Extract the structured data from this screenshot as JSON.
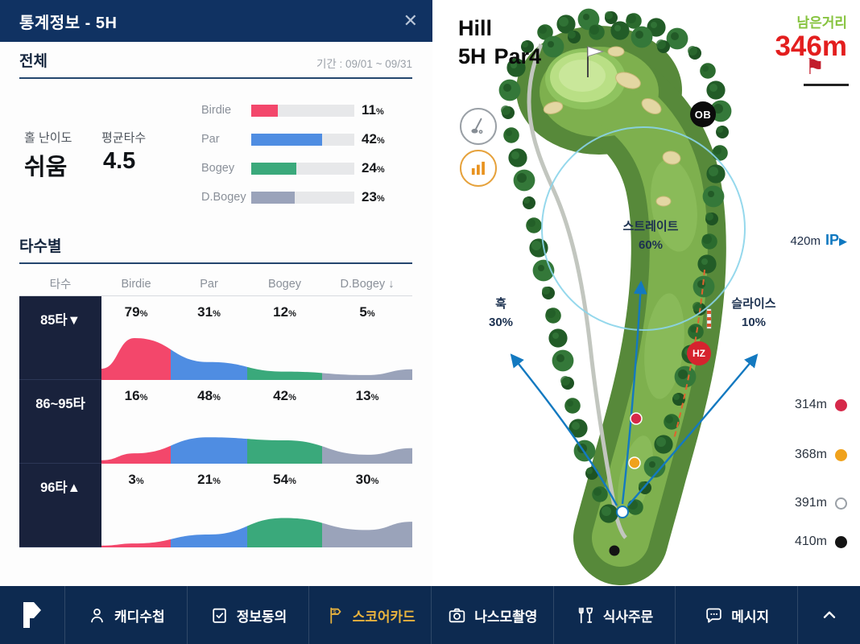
{
  "stats_panel": {
    "header": {
      "title": "통계정보 - 5H"
    },
    "overall": {
      "heading": "전체",
      "period": "기간 : 09/01 ~ 09/31",
      "difficulty_label": "홀 난이도",
      "difficulty_value": "쉬움",
      "avg_label": "평균타수",
      "avg_value": "4.5",
      "bars": [
        {
          "label": "Birdie",
          "pct": 11,
          "color": "#f3476b"
        },
        {
          "label": "Par",
          "pct": 42,
          "color": "#4f8de2"
        },
        {
          "label": "Bogey",
          "pct": 24,
          "color": "#3aa97b"
        },
        {
          "label": "D.Bogey",
          "pct": 23,
          "color": "#9aa3ba"
        }
      ]
    },
    "by_strokes": {
      "heading": "타수별",
      "columns": [
        "타수",
        "Birdie",
        "Par",
        "Bogey",
        "D.Bogey ↓"
      ],
      "rows": [
        {
          "label": "85타▼",
          "values": [
            79,
            31,
            12,
            5
          ]
        },
        {
          "label": "86~95타",
          "values": [
            16,
            48,
            42,
            13
          ]
        },
        {
          "label": "96타▲",
          "values": [
            3,
            21,
            54,
            30
          ]
        }
      ]
    }
  },
  "map_panel": {
    "hole_name": "Hill",
    "hole_number": "5H",
    "par": "Par4",
    "remaining": {
      "label": "남은거리",
      "value": "346m"
    },
    "badges": {
      "ob": "OB",
      "hz": "HZ"
    },
    "ip": {
      "distance": "420m",
      "label": "IP",
      "arrow": "▶"
    },
    "directions": [
      {
        "label": "스트레이트",
        "pct": "60%"
      },
      {
        "label": "훅",
        "pct": "30%"
      },
      {
        "label": "슬라이스",
        "pct": "10%"
      }
    ],
    "tee_distances": [
      {
        "value": "314m",
        "color": "#d6294a",
        "type": "filled"
      },
      {
        "value": "368m",
        "color": "#f0a21c",
        "type": "filled"
      },
      {
        "value": "391m",
        "color": "#ffffff",
        "type": "outlined"
      },
      {
        "value": "410m",
        "color": "#141414",
        "type": "filled"
      }
    ]
  },
  "bottom_nav": {
    "items": [
      {
        "label": "캐디수첩",
        "icon": "person-icon",
        "active": false
      },
      {
        "label": "정보동의",
        "icon": "consent-icon",
        "active": false
      },
      {
        "label": "스코어카드",
        "icon": "scorecard-flag-icon",
        "active": true
      },
      {
        "label": "나스모촬영",
        "icon": "camera-icon",
        "active": false
      },
      {
        "label": "식사주문",
        "icon": "meal-icon",
        "active": false
      },
      {
        "label": "메시지",
        "icon": "message-icon",
        "active": false
      }
    ]
  },
  "icons": {
    "close": "✕",
    "remaining_flag": "⚑"
  },
  "chart_data": [
    {
      "type": "bar",
      "title": "전체 스코어 분포",
      "categories": [
        "Birdie",
        "Par",
        "Bogey",
        "D.Bogey"
      ],
      "values": [
        11,
        42,
        24,
        23
      ],
      "unit": "%",
      "xlabel": "",
      "ylabel": "",
      "xlim": [
        0,
        100
      ]
    },
    {
      "type": "area",
      "title": "타수별 스코어 분포",
      "categories": [
        "Birdie",
        "Par",
        "Bogey",
        "D.Bogey"
      ],
      "series": [
        {
          "name": "85타▼",
          "values": [
            79,
            31,
            12,
            5
          ]
        },
        {
          "name": "86~95타",
          "values": [
            16,
            48,
            42,
            13
          ]
        },
        {
          "name": "96타▲",
          "values": [
            3,
            21,
            54,
            30
          ]
        }
      ],
      "unit": "%"
    }
  ]
}
